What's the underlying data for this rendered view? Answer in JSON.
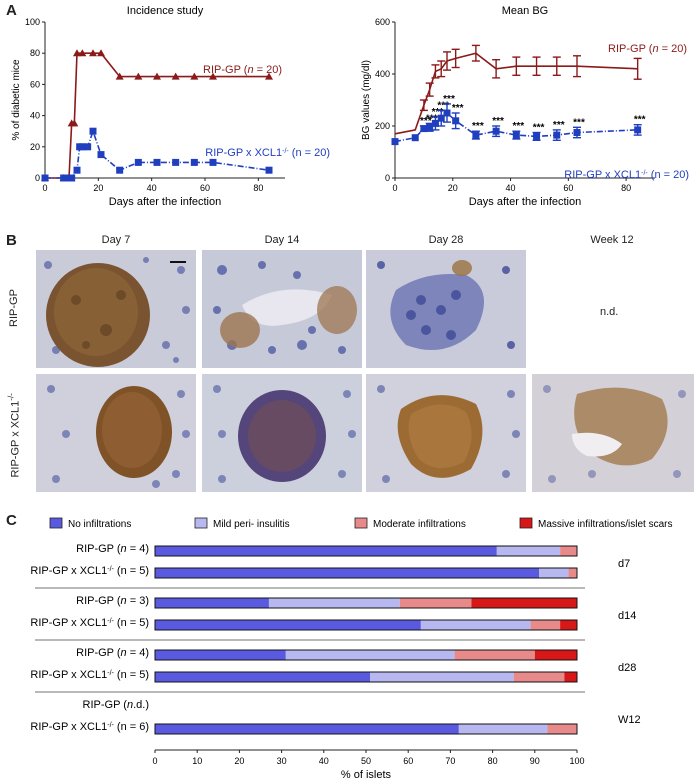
{
  "panel_labels": {
    "a": "A",
    "b": "B",
    "c": "C"
  },
  "chart_data": [
    {
      "type": "line",
      "title": "Incidence study",
      "xlabel": "Days after the infection",
      "ylabel": "% of diabetic mice",
      "xlim": [
        0,
        90
      ],
      "ylim": [
        0,
        100
      ],
      "x_ticks": [
        0,
        20,
        40,
        60,
        80
      ],
      "y_ticks": [
        0,
        20,
        40,
        60,
        80,
        100
      ],
      "series": [
        {
          "name": "RIP-GP (n = 20)",
          "color": "#8b1a1a",
          "style": "solid",
          "marker": "triangle",
          "x": [
            0,
            7,
            9,
            10,
            11,
            12,
            14,
            18,
            21,
            28,
            35,
            42,
            49,
            56,
            63,
            84
          ],
          "y": [
            0,
            0,
            0,
            35,
            35,
            80,
            80,
            80,
            80,
            65,
            65,
            65,
            65,
            65,
            65,
            65
          ]
        },
        {
          "name": "RIP-GP x XCL1-/- (n = 20)",
          "color": "#1f3fbf",
          "style": "dashdot",
          "marker": "square",
          "x": [
            0,
            7,
            9,
            10,
            12,
            13,
            14,
            16,
            18,
            21,
            28,
            35,
            42,
            49,
            56,
            63,
            84
          ],
          "y": [
            0,
            0,
            0,
            0,
            5,
            20,
            20,
            20,
            30,
            15,
            5,
            10,
            10,
            10,
            10,
            10,
            5
          ]
        }
      ]
    },
    {
      "type": "line",
      "title": "Mean BG",
      "xlabel": "Days after the infection",
      "ylabel": "BG values (mg/dl)",
      "xlim": [
        0,
        90
      ],
      "ylim": [
        0,
        600
      ],
      "x_ticks": [
        0,
        20,
        40,
        60,
        80
      ],
      "y_ticks": [
        0,
        200,
        400,
        600
      ],
      "series": [
        {
          "name": "RIP-GP (n = 20)",
          "color": "#8b1a1a",
          "marker": "none",
          "x": [
            0,
            7,
            10,
            12,
            14,
            16,
            18,
            21,
            28,
            35,
            42,
            49,
            56,
            63,
            84
          ],
          "y": [
            170,
            185,
            280,
            340,
            410,
            420,
            450,
            460,
            480,
            420,
            430,
            430,
            430,
            430,
            420
          ],
          "err": [
            0,
            0,
            20,
            25,
            25,
            30,
            35,
            35,
            30,
            35,
            35,
            35,
            35,
            40,
            40
          ]
        },
        {
          "name": "RIP-GP x XCL1-/- (n = 20)",
          "color": "#1f3fbf",
          "marker": "square",
          "style": "dashdot",
          "x": [
            0,
            7,
            10,
            12,
            14,
            16,
            18,
            21,
            28,
            35,
            42,
            49,
            56,
            63,
            84
          ],
          "y": [
            140,
            155,
            190,
            195,
            210,
            230,
            250,
            220,
            165,
            180,
            165,
            160,
            165,
            175,
            185
          ],
          "err": [
            0,
            0,
            10,
            15,
            25,
            30,
            35,
            30,
            15,
            20,
            15,
            15,
            20,
            20,
            20
          ],
          "annot": [
            "",
            "",
            "***",
            "***",
            "***",
            "***",
            "***",
            "***",
            "***",
            "***",
            "***",
            "***",
            "***",
            "***",
            "***"
          ]
        }
      ]
    },
    {
      "type": "bar",
      "orientation": "horizontal-stacked",
      "xlabel": "% of islets",
      "xlim": [
        0,
        100
      ],
      "x_ticks": [
        0,
        10,
        20,
        30,
        40,
        50,
        60,
        70,
        80,
        90,
        100
      ],
      "legend": [
        {
          "label": "No infiltrations",
          "color": "#5a5ae0"
        },
        {
          "label": "Mild peri- insulitis",
          "color": "#b8b8f0"
        },
        {
          "label": "Moderate infiltrations",
          "color": "#e88a8a"
        },
        {
          "label": "Massive infiltrations/islet scars",
          "color": "#d81818"
        }
      ],
      "groups": [
        {
          "label": "d7",
          "rows": [
            {
              "label": "RIP-GP (n = 4)",
              "values": [
                81,
                15,
                4,
                0
              ]
            },
            {
              "label": "RIP-GP x XCL1-/- (n = 5)",
              "values": [
                91,
                7,
                2,
                0
              ]
            }
          ]
        },
        {
          "label": "d14",
          "rows": [
            {
              "label": "RIP-GP (n = 3)",
              "values": [
                27,
                31,
                17,
                25
              ]
            },
            {
              "label": "RIP-GP x XCL1-/- (n = 5)",
              "values": [
                63,
                26,
                7,
                4
              ]
            }
          ]
        },
        {
          "label": "d28",
          "rows": [
            {
              "label": "RIP-GP (n = 4)",
              "values": [
                31,
                40,
                19,
                10
              ]
            },
            {
              "label": "RIP-GP x XCL1-/- (n = 5)",
              "values": [
                51,
                34,
                12,
                3
              ]
            }
          ]
        },
        {
          "label": "W12",
          "rows": [
            {
              "label": "RIP-GP (n.d.)",
              "values": null
            },
            {
              "label": "RIP-GP x XCL1-/- (n = 6)",
              "values": [
                72,
                21,
                7,
                0
              ]
            }
          ]
        }
      ]
    }
  ],
  "micrographs": {
    "columns": [
      "Day 7",
      "Day 14",
      "Day 28",
      "Week 12"
    ],
    "rows": [
      "RIP-GP",
      "RIP-GP x XCL1-/-"
    ],
    "not_determined": "n.d."
  }
}
